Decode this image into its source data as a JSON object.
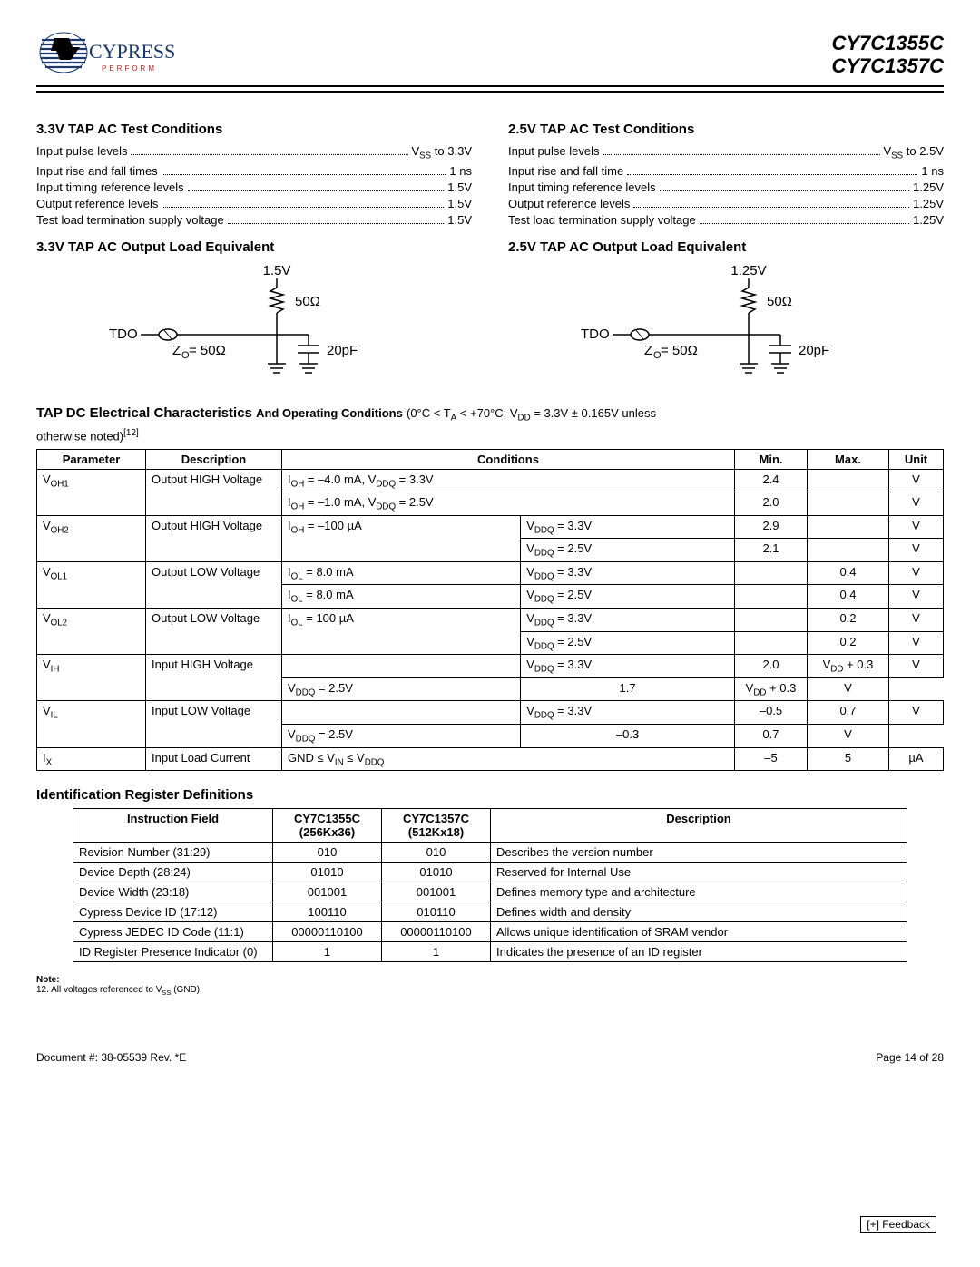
{
  "header": {
    "logo_text": "CYPRESS",
    "logo_sub": "P E R F O R M",
    "part1": "CY7C1355C",
    "part2": "CY7C1357C"
  },
  "sections": {
    "left_cond_title": "3.3V TAP AC Test Conditions",
    "right_cond_title": "2.5V TAP AC Test Conditions",
    "left_load_title": "3.3V TAP AC Output Load Equivalent",
    "right_load_title": "2.5V TAP AC Output Load Equivalent"
  },
  "left_conditions": [
    {
      "label": "Input pulse levels",
      "value": "V_SS to 3.3V"
    },
    {
      "label": "Input rise and fall times",
      "value": "1 ns"
    },
    {
      "label": "Input timing reference levels",
      "value": "1.5V"
    },
    {
      "label": "Output reference levels",
      "value": "1.5V"
    },
    {
      "label": "Test load termination supply voltage",
      "value": "1.5V"
    }
  ],
  "right_conditions": [
    {
      "label": "Input pulse levels",
      "value": "V_SS to 2.5V"
    },
    {
      "label": "Input rise and fall time",
      "value": "1 ns"
    },
    {
      "label": "Input timing reference levels",
      "value": "1.25V"
    },
    {
      "label": "Output reference levels",
      "value": "1.25V"
    },
    {
      "label": "Test load termination supply voltage",
      "value": "1.25V"
    }
  ],
  "circuit": {
    "left": {
      "top_v": "1.5V",
      "r": "50Ω",
      "c": "20pF",
      "z": "Z_O= 50Ω",
      "tdo": "TDO"
    },
    "right": {
      "top_v": "1.25V",
      "r": "50Ω",
      "c": "20pF",
      "z": "Z_O= 50Ω",
      "tdo": "TDO"
    }
  },
  "tap_dc": {
    "title": "TAP DC Electrical Characteristics",
    "subtitle": "And Operating Conditions",
    "cond_text": "(0°C < T_A < +70°C; V_DD = 3.3V ± 0.165V unless otherwise noted)",
    "note_ref": "[12]",
    "headers": [
      "Parameter",
      "Description",
      "Conditions",
      "Min.",
      "Max.",
      "Unit"
    ]
  },
  "tap_rows": [
    {
      "param": "V_OH1",
      "desc": "Output HIGH Voltage",
      "cond": "I_OH = –4.0 mA, V_DDQ = 3.3V",
      "cond2": "",
      "min": "2.4",
      "max": "",
      "unit": "V"
    },
    {
      "param": "",
      "desc": "",
      "cond": "I_OH = –1.0 mA, V_DDQ = 2.5V",
      "cond2": "",
      "min": "2.0",
      "max": "",
      "unit": "V"
    },
    {
      "param": "V_OH2",
      "desc": "Output HIGH Voltage",
      "cond": "I_OH = –100 µA",
      "cond2": "V_DDQ = 3.3V",
      "min": "2.9",
      "max": "",
      "unit": "V"
    },
    {
      "param": "",
      "desc": "",
      "cond": "",
      "cond2": "V_DDQ = 2.5V",
      "min": "2.1",
      "max": "",
      "unit": "V"
    },
    {
      "param": "V_OL1",
      "desc": "Output LOW Voltage",
      "cond": "I_OL = 8.0 mA",
      "cond2": "V_DDQ = 3.3V",
      "min": "",
      "max": "0.4",
      "unit": "V"
    },
    {
      "param": "",
      "desc": "",
      "cond": "I_OL = 8.0 mA",
      "cond2": "V_DDQ = 2.5V",
      "min": "",
      "max": "0.4",
      "unit": "V"
    },
    {
      "param": "V_OL2",
      "desc": "Output LOW Voltage",
      "cond": "I_OL = 100 µA",
      "cond2": "V_DDQ = 3.3V",
      "min": "",
      "max": "0.2",
      "unit": "V"
    },
    {
      "param": "",
      "desc": "",
      "cond": "",
      "cond2": "V_DDQ = 2.5V",
      "min": "",
      "max": "0.2",
      "unit": "V"
    },
    {
      "param": "V_IH",
      "desc": "Input HIGH Voltage",
      "cond": "",
      "cond2": "V_DDQ = 3.3V",
      "min": "2.0",
      "max": "V_DD + 0.3",
      "unit": "V"
    },
    {
      "param": "",
      "desc": "",
      "cond": "",
      "cond2": "V_DDQ = 2.5V",
      "min": "1.7",
      "max": "V_DD + 0.3",
      "unit": "V"
    },
    {
      "param": "V_IL",
      "desc": "Input LOW Voltage",
      "cond": "",
      "cond2": "V_DDQ = 3.3V",
      "min": "–0.5",
      "max": "0.7",
      "unit": "V"
    },
    {
      "param": "",
      "desc": "",
      "cond": "",
      "cond2": "V_DDQ = 2.5V",
      "min": "–0.3",
      "max": "0.7",
      "unit": "V"
    },
    {
      "param": "I_X",
      "desc": "Input Load Current",
      "cond": "GND ≤ V_IN ≤ V_DDQ",
      "cond2": "",
      "min": "–5",
      "max": "5",
      "unit": "µA"
    }
  ],
  "idreg": {
    "title": "Identification Register Definitions",
    "headers": [
      "Instruction Field",
      "CY7C1355C (256Kx36)",
      "CY7C1357C (512Kx18)",
      "Description"
    ],
    "rows": [
      {
        "f": "Revision Number (31:29)",
        "a": "010",
        "b": "010",
        "d": "Describes the version number"
      },
      {
        "f": "Device Depth (28:24)",
        "a": "01010",
        "b": "01010",
        "d": "Reserved for Internal Use"
      },
      {
        "f": "Device Width (23:18)",
        "a": "001001",
        "b": "001001",
        "d": "Defines memory type and architecture"
      },
      {
        "f": "Cypress Device ID (17:12)",
        "a": "100110",
        "b": "010110",
        "d": "Defines width and density"
      },
      {
        "f": "Cypress JEDEC ID Code (11:1)",
        "a": "00000110100",
        "b": "00000110100",
        "d": "Allows unique identification of SRAM vendor"
      },
      {
        "f": "ID Register Presence Indicator (0)",
        "a": "1",
        "b": "1",
        "d": "Indicates the presence of an ID register"
      }
    ]
  },
  "notes": {
    "header": "Note:",
    "item": "12. All voltages referenced to V_SS (GND)."
  },
  "footer": {
    "doc": "Document #: 38-05539 Rev. *E",
    "page": "Page 14 of 28",
    "feedback": "[+] Feedback"
  },
  "style": {
    "colors": {
      "text": "#000000",
      "bg": "#ffffff",
      "logo_blue": "#1a3a6e",
      "logo_red": "#c02020"
    },
    "fonts": {
      "body_size_pt": 10,
      "heading_size_pt": 12,
      "part_size_pt": 16
    }
  }
}
